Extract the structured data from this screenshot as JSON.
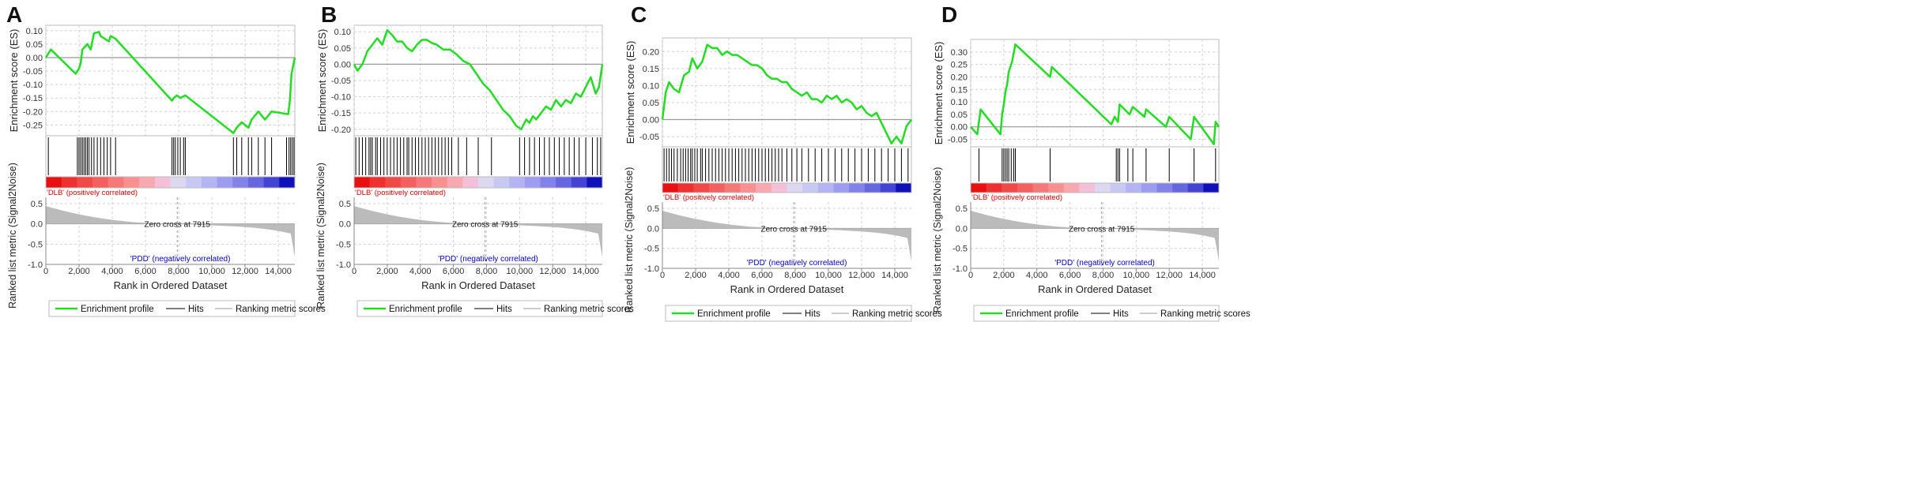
{
  "figure": {
    "common": {
      "es_ylabel": "Enrichment score (ES)",
      "metric_ylabel": "Ranked list metric (Signal2Noise)",
      "xlabel": "Rank in Ordered Dataset",
      "pos_label": "'DLB' (positively correlated)",
      "neg_label": "'PDD' (negatively correlated)",
      "zero_cross_label": "Zero cross at 7915",
      "legend": [
        "Enrichment profile",
        "Hits",
        "Ranking metric scores"
      ],
      "x_ticks": [
        0,
        2000,
        4000,
        6000,
        8000,
        10000,
        12000,
        14000
      ],
      "x_tick_labels": [
        "0",
        "2,000",
        "4,000",
        "6,000",
        "8,000",
        "10,000",
        "12,000",
        "14,000"
      ],
      "metric_ticks": [
        0.5,
        0.0,
        -0.5,
        -1.0
      ],
      "metric_tick_labels": [
        "0.5",
        "0.0",
        "-0.5",
        "-1.0"
      ],
      "zero_cross_rank": 7915,
      "total_rank": 15000,
      "colors": {
        "profile": "#22dd22",
        "hits": "#000000",
        "metric": "#bbbbbb",
        "pos": "#dd0000",
        "neg": "#0000cc",
        "grid": "#d0d0d0",
        "axis": "#888888"
      }
    }
  },
  "chart_data": [
    {
      "panel_label": "A",
      "type": "line",
      "title": "",
      "xlabel": "Rank in Ordered Dataset",
      "ylabel": "Enrichment score (ES)",
      "xlim": [
        0,
        15000
      ],
      "ylim": [
        -0.29,
        0.12
      ],
      "y_ticks": [
        0.1,
        0.05,
        0.0,
        -0.05,
        -0.1,
        -0.15,
        -0.2,
        -0.25
      ],
      "y_tick_labels": [
        "0.10",
        "0.05",
        "0.00",
        "-0.05",
        "-0.10",
        "-0.15",
        "-0.20",
        "-0.25"
      ],
      "es_profile": {
        "x": [
          0,
          300,
          1800,
          2000,
          2100,
          2200,
          2500,
          2700,
          2900,
          3200,
          3300,
          3800,
          3900,
          4200,
          7600,
          7700,
          7900,
          8100,
          8400,
          11300,
          11500,
          11800,
          12200,
          12400,
          12800,
          13200,
          13600,
          14600,
          14700,
          14800,
          15000
        ],
        "y": [
          0.0,
          0.03,
          -0.06,
          -0.04,
          -0.02,
          0.03,
          0.05,
          0.03,
          0.09,
          0.095,
          0.08,
          0.06,
          0.08,
          0.07,
          -0.16,
          -0.15,
          -0.14,
          -0.15,
          -0.14,
          -0.28,
          -0.26,
          -0.24,
          -0.26,
          -0.23,
          -0.2,
          -0.23,
          -0.2,
          -0.21,
          -0.16,
          -0.06,
          0.0
        ]
      },
      "hits": [
        150,
        1900,
        2000,
        2100,
        2200,
        2300,
        2400,
        2500,
        2600,
        2750,
        2900,
        3100,
        3300,
        3500,
        3700,
        3900,
        4200,
        7600,
        7700,
        7800,
        7950,
        8100,
        8300,
        8400,
        11300,
        11500,
        11800,
        12200,
        12400,
        12800,
        13200,
        13600,
        14500,
        14650,
        14750,
        14850,
        14950
      ]
    },
    {
      "panel_label": "B",
      "type": "line",
      "title": "",
      "xlabel": "Rank in Ordered Dataset",
      "ylabel": "Enrichment score (ES)",
      "xlim": [
        0,
        15000
      ],
      "ylim": [
        -0.22,
        0.12
      ],
      "y_ticks": [
        0.1,
        0.05,
        0.0,
        -0.05,
        -0.1,
        -0.15,
        -0.2
      ],
      "y_tick_labels": [
        "0.10",
        "0.05",
        "0.00",
        "-0.05",
        "-0.10",
        "-0.15",
        "-0.20"
      ],
      "es_profile": {
        "x": [
          0,
          200,
          500,
          800,
          1100,
          1400,
          1700,
          2000,
          2300,
          2600,
          2900,
          3200,
          3500,
          3800,
          4100,
          4400,
          4700,
          5000,
          5400,
          5800,
          6200,
          6600,
          7000,
          7400,
          7800,
          8200,
          8600,
          9000,
          9400,
          9800,
          10100,
          10400,
          10600,
          10800,
          11000,
          11300,
          11600,
          11900,
          12200,
          12500,
          12800,
          13100,
          13400,
          13700,
          14000,
          14300,
          14600,
          14800,
          15000
        ],
        "y": [
          0.0,
          -0.02,
          0.0,
          0.04,
          0.06,
          0.08,
          0.06,
          0.105,
          0.09,
          0.07,
          0.07,
          0.05,
          0.04,
          0.06,
          0.075,
          0.075,
          0.065,
          0.06,
          0.045,
          0.045,
          0.03,
          0.01,
          0.0,
          -0.03,
          -0.06,
          -0.08,
          -0.11,
          -0.14,
          -0.16,
          -0.19,
          -0.2,
          -0.17,
          -0.18,
          -0.16,
          -0.17,
          -0.15,
          -0.13,
          -0.14,
          -0.11,
          -0.13,
          -0.11,
          -0.12,
          -0.09,
          -0.1,
          -0.07,
          -0.04,
          -0.09,
          -0.07,
          0.0
        ]
      },
      "hits": [
        100,
        300,
        500,
        700,
        900,
        1000,
        1100,
        1300,
        1400,
        1600,
        1800,
        2000,
        2200,
        2400,
        2600,
        2800,
        3000,
        3200,
        3300,
        3500,
        3700,
        3900,
        4100,
        4300,
        4500,
        4700,
        4900,
        5100,
        5300,
        5500,
        5700,
        5900,
        6300,
        6800,
        7500,
        8300,
        10000,
        10300,
        10600,
        10900,
        11200,
        11500,
        11800,
        12100,
        12400,
        12700,
        13000,
        13300,
        13600,
        14000,
        14400,
        14700,
        14900
      ]
    },
    {
      "panel_label": "C",
      "type": "line",
      "title": "",
      "xlabel": "Rank in Ordered Dataset",
      "ylabel": "Enrichment score (ES)",
      "xlim": [
        0,
        15000
      ],
      "ylim": [
        -0.08,
        0.24
      ],
      "y_ticks": [
        0.2,
        0.15,
        0.1,
        0.05,
        0.0,
        -0.05
      ],
      "y_tick_labels": [
        "0.20",
        "0.15",
        "0.10",
        "0.05",
        "0.00",
        "-0.05"
      ],
      "es_profile": {
        "x": [
          0,
          200,
          400,
          700,
          1000,
          1300,
          1600,
          1800,
          2100,
          2400,
          2700,
          3000,
          3300,
          3600,
          3900,
          4200,
          4500,
          4800,
          5100,
          5400,
          5700,
          6000,
          6300,
          6600,
          6900,
          7200,
          7500,
          7800,
          8100,
          8400,
          8700,
          9000,
          9300,
          9600,
          9900,
          10200,
          10500,
          10800,
          11100,
          11400,
          11700,
          12000,
          12300,
          12600,
          12900,
          13200,
          13500,
          13800,
          14100,
          14400,
          14700,
          15000
        ],
        "y": [
          0.0,
          0.08,
          0.11,
          0.09,
          0.08,
          0.13,
          0.14,
          0.18,
          0.15,
          0.17,
          0.22,
          0.21,
          0.21,
          0.19,
          0.2,
          0.19,
          0.19,
          0.18,
          0.17,
          0.16,
          0.16,
          0.15,
          0.13,
          0.12,
          0.12,
          0.11,
          0.11,
          0.09,
          0.08,
          0.07,
          0.08,
          0.06,
          0.06,
          0.05,
          0.07,
          0.06,
          0.07,
          0.05,
          0.06,
          0.05,
          0.03,
          0.04,
          0.02,
          0.01,
          0.02,
          -0.01,
          -0.04,
          -0.07,
          -0.05,
          -0.07,
          -0.02,
          0.0
        ]
      },
      "hits": [
        100,
        250,
        400,
        550,
        700,
        900,
        1100,
        1250,
        1400,
        1550,
        1700,
        1800,
        1950,
        2100,
        2300,
        2400,
        2600,
        2800,
        3000,
        3200,
        3400,
        3600,
        3800,
        4000,
        4200,
        4400,
        4600,
        4800,
        5000,
        5200,
        5400,
        5600,
        5800,
        6000,
        6200,
        6400,
        6600,
        6800,
        7000,
        7200,
        7500,
        7800,
        8100,
        8400,
        8800,
        9200,
        9600,
        10000,
        10400,
        10800,
        11200,
        11600,
        12000,
        12400,
        12800,
        13200,
        13600,
        14000,
        14400,
        14800
      ]
    },
    {
      "panel_label": "D",
      "type": "line",
      "title": "",
      "xlabel": "Rank in Ordered Dataset",
      "ylabel": "Enrichment score (ES)",
      "xlim": [
        0,
        15000
      ],
      "ylim": [
        -0.08,
        0.35
      ],
      "y_ticks": [
        0.3,
        0.25,
        0.2,
        0.15,
        0.1,
        0.05,
        0.0,
        -0.05
      ],
      "y_tick_labels": [
        "0.30",
        "0.25",
        "0.20",
        "0.15",
        "0.10",
        "0.05",
        "0.00",
        "-0.05"
      ],
      "es_profile": {
        "x": [
          0,
          400,
          600,
          1800,
          1900,
          2000,
          2100,
          2200,
          2300,
          2500,
          2700,
          4800,
          4900,
          8500,
          8700,
          8900,
          9000,
          9300,
          9600,
          9800,
          10500,
          10600,
          11800,
          12000,
          13300,
          13500,
          14700,
          14800,
          15000
        ],
        "y": [
          0.0,
          -0.03,
          0.07,
          -0.03,
          0.05,
          0.09,
          0.14,
          0.17,
          0.22,
          0.26,
          0.33,
          0.2,
          0.24,
          0.01,
          0.04,
          0.02,
          0.09,
          0.07,
          0.05,
          0.08,
          0.04,
          0.07,
          0.0,
          0.04,
          -0.05,
          0.04,
          -0.07,
          0.02,
          0.0
        ]
      },
      "hits": [
        500,
        1900,
        2000,
        2100,
        2200,
        2300,
        2450,
        2600,
        2700,
        4800,
        8800,
        8900,
        9000,
        9500,
        9800,
        10600,
        12000,
        13500,
        14800
      ]
    }
  ]
}
